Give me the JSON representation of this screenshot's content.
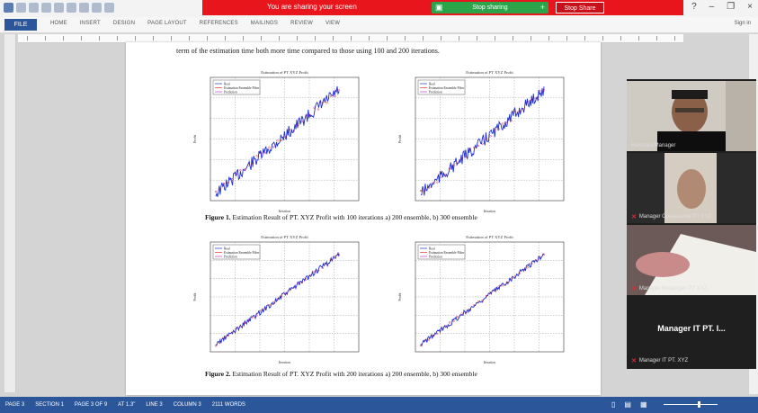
{
  "share": {
    "banner_text": "You are sharing your screen",
    "pill_label": "Stop sharing",
    "stop_label": "Stop Share"
  },
  "ribbon": {
    "file": "FILE",
    "tabs": [
      "HOME",
      "INSERT",
      "DESIGN",
      "PAGE LAYOUT",
      "REFERENCES",
      "MAILINGS",
      "REVIEW",
      "VIEW"
    ],
    "signin": "Sign in"
  },
  "document": {
    "top_line": "term of the estimation time both more time compared to those using 100 and 200 iterations.",
    "fig1_caption_bold": "Figure 1.",
    "fig1_caption": " Estimation Result of PT. XYZ Profit with 100 iterations a) 200 ensemble, b) 300 ensemble",
    "fig2_caption_bold": "Figure 2.",
    "fig2_caption": " Estimation Result of PT. XYZ Profit with 200 iterations a) 200 ensemble, b) 300 ensemble"
  },
  "plots": [
    {
      "title": "Estimation of PT XYZ Profit",
      "legend": [
        "Real",
        "Estimation Ensemble Filter",
        "Prediction"
      ],
      "xlabel": "Iteration",
      "ylabel": "Profit"
    },
    {
      "title": "Estimation of PT XYZ Profit",
      "legend": [
        "Real",
        "Estimation Ensemble Filter",
        "Prediction"
      ],
      "xlabel": "Iteration",
      "ylabel": "Profit"
    },
    {
      "title": "Estimation of PT XYZ Profit",
      "legend": [
        "Real",
        "Estimation Ensemble Filter",
        "Prediction"
      ],
      "xlabel": "Iteration",
      "ylabel": "Profit"
    },
    {
      "title": "Estimation of PT XYZ Profit",
      "legend": [
        "Real",
        "Estimation Ensemble Filter",
        "Prediction"
      ],
      "xlabel": "Iteration",
      "ylabel": "Profit"
    }
  ],
  "status": {
    "items": [
      "PAGE 3",
      "SECTION 1",
      "PAGE 3 OF 9",
      "AT 1.3\"",
      "LINE 3",
      "COLUMN 3",
      "2111 WORDS"
    ]
  },
  "participants": [
    {
      "name": "Hamdani Manager",
      "muted": false
    },
    {
      "name": "Manager Operasional PT XYZ",
      "muted": true
    },
    {
      "name": "Manager Keuangan PT XYZ",
      "muted": true
    },
    {
      "name": "Manager IT PT. XYZ",
      "muted": true
    }
  ],
  "participant_big": "Manager IT PT. I...",
  "colors": {
    "word_blue": "#2b579a",
    "share_red": "#e8161c",
    "share_green": "#2ca44a",
    "plot_blue": "#1f2fd0"
  }
}
